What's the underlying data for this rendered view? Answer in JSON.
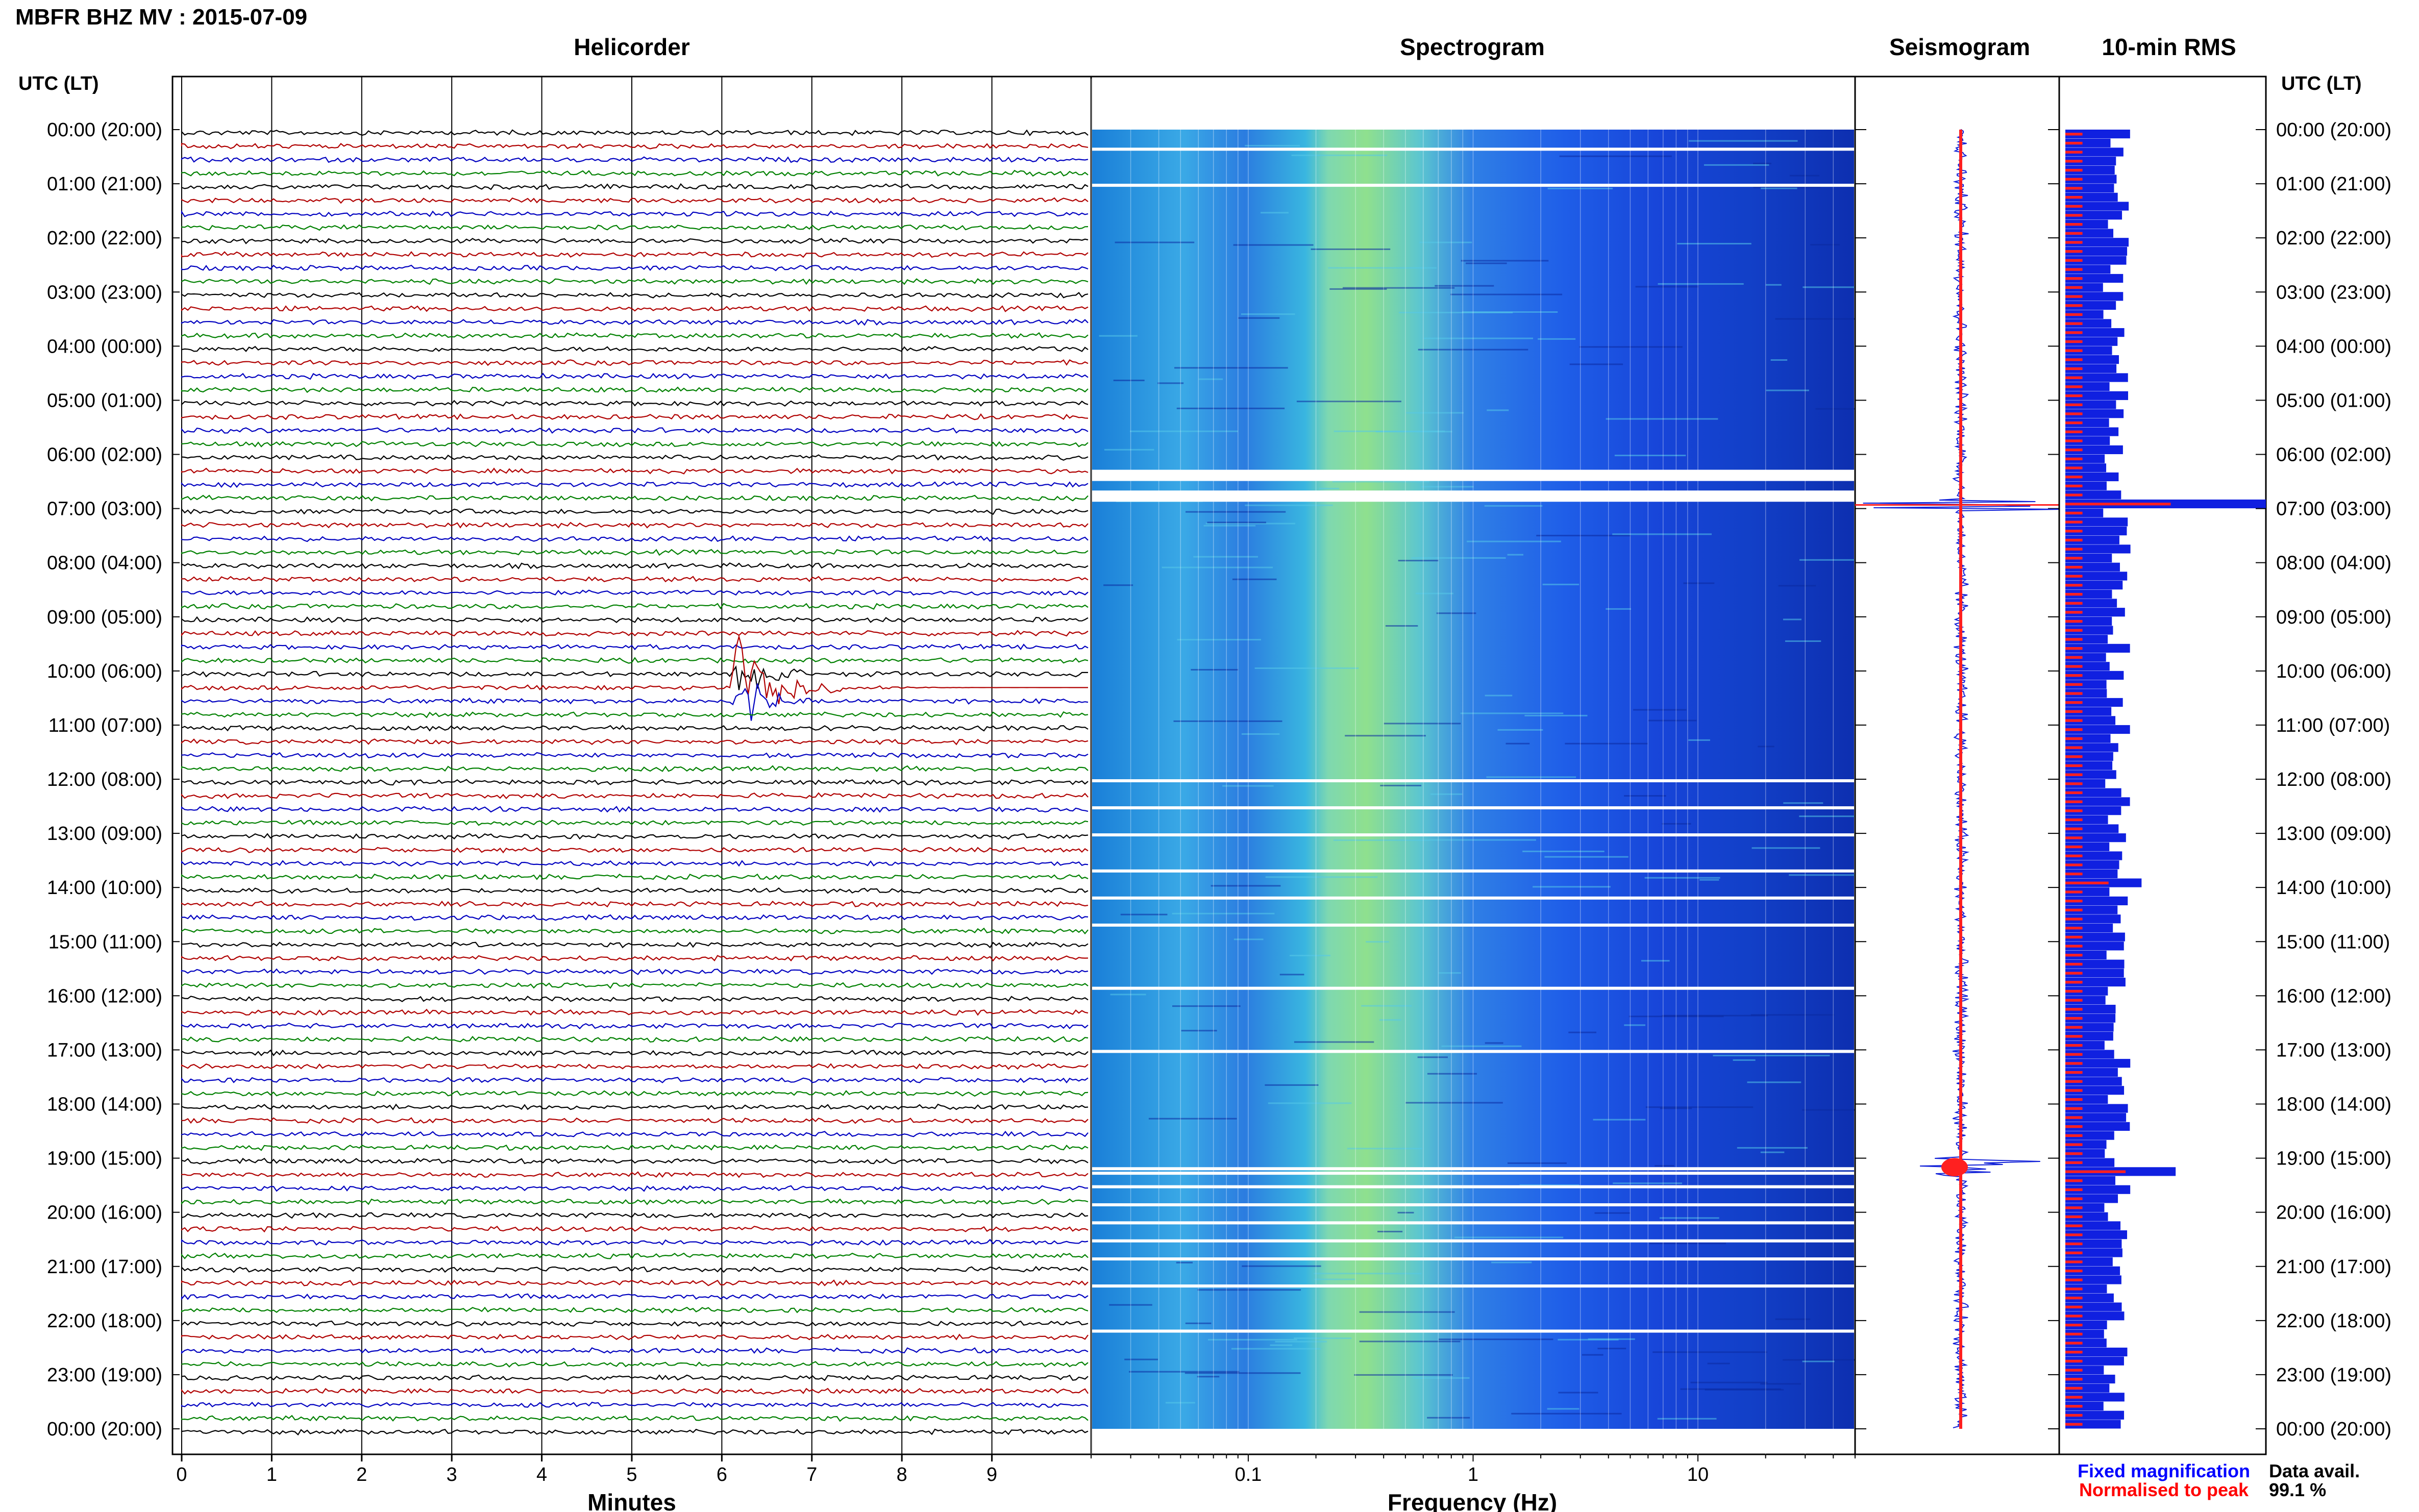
{
  "header": {
    "station_title": "MBFR BHZ MV : 2015-07-09",
    "utc_label_left": "UTC (LT)",
    "utc_label_right": "UTC (LT)"
  },
  "panels": {
    "helicorder": "Helicorder",
    "spectrogram": "Spectrogram",
    "seismogram": "Seismogram",
    "rms": "10-min RMS"
  },
  "axes": {
    "minutes_label": "Minutes",
    "frequency_label": "Frequency (Hz)",
    "minute_ticks": [
      "0",
      "1",
      "2",
      "3",
      "4",
      "5",
      "6",
      "7",
      "8",
      "9"
    ],
    "frequency_ticks": [
      "0.1",
      "1",
      "10"
    ]
  },
  "legend": {
    "fixed": "Fixed magnification",
    "normalised": "Normalised to peak",
    "fixed_color": "#0000ff",
    "normalised_color": "#ff0000"
  },
  "availability": {
    "label": "Data avail.",
    "value": "99.1 %"
  },
  "time_labels": [
    "00:00 (20:00)",
    "01:00 (21:00)",
    "02:00 (22:00)",
    "03:00 (23:00)",
    "04:00 (00:00)",
    "05:00 (01:00)",
    "06:00 (02:00)",
    "07:00 (03:00)",
    "08:00 (04:00)",
    "09:00 (05:00)",
    "10:00 (06:00)",
    "11:00 (07:00)",
    "12:00 (08:00)",
    "13:00 (09:00)",
    "14:00 (10:00)",
    "15:00 (11:00)",
    "16:00 (12:00)",
    "17:00 (13:00)",
    "18:00 (14:00)",
    "19:00 (15:00)",
    "20:00 (16:00)",
    "21:00 (17:00)",
    "22:00 (18:00)",
    "23:00 (19:00)",
    "00:00 (20:00)"
  ],
  "trace_colors": [
    "#000000",
    "#b00000",
    "#0000c0",
    "#008000"
  ],
  "chart_data": {
    "type": "heatmap",
    "title": "MBFR BHZ MV : 2015-07-09",
    "helicorder": {
      "xlabel": "Minutes",
      "xlim": [
        0,
        10
      ],
      "lines_per_hour": 4,
      "line_minutes": 10,
      "events": [
        {
          "time_utc": "06:50",
          "description": "large transient",
          "start_min": 6.1,
          "duration_min": 1.5
        },
        {
          "time_utc": "19:00-19:10",
          "description": "sustained high-amplitude noise"
        }
      ]
    },
    "spectrogram": {
      "xlabel": "Frequency (Hz)",
      "scale": "log",
      "xlim": [
        0.02,
        50
      ],
      "data_gaps_utc": [
        "00:20",
        "01:00",
        "06:17",
        "06:40",
        "12:00",
        "12:30",
        "13:00",
        "13:40",
        "14:10",
        "14:40",
        "15:50",
        "17:00",
        "19:10",
        "19:15",
        "19:30",
        "19:50",
        "20:10",
        "20:30",
        "20:50",
        "21:20",
        "22:10"
      ]
    },
    "seismogram": {
      "peaks_utc": [
        "06:56",
        "19:10"
      ]
    },
    "rms_10min": {
      "unit": "relative",
      "typical": 0.25,
      "peaks": [
        {
          "time_utc": "06:50",
          "value": 1.0
        },
        {
          "time_utc": "19:10",
          "value": 0.55
        },
        {
          "time_utc": "13:50",
          "value": 0.38
        }
      ]
    },
    "data_availability_percent": 99.1
  }
}
